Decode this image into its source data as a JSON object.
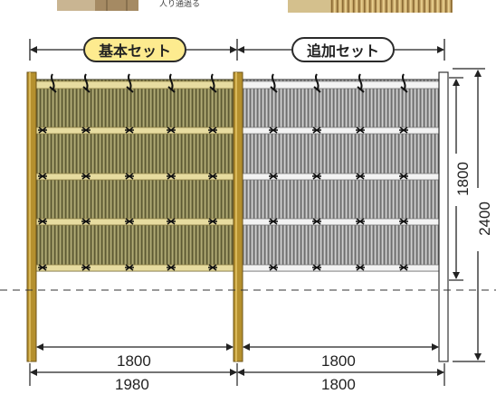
{
  "labels": {
    "basic_set": "基本セット",
    "additional_set": "追加セット",
    "top_fragment": "人り通過る"
  },
  "dimensions": {
    "basic_panel_width": "1800",
    "basic_overall_width": "1980",
    "additional_panel_width": "1800",
    "additional_overall_width": "1800",
    "fence_height": "1800",
    "post_height": "2400"
  },
  "colors": {
    "basic_pill": "#fdeb8f",
    "basic_panel": "#8e8a5a",
    "basic_reed": "#5e5a34",
    "post": "#b5902e",
    "additional_panel": "#9c9c9c",
    "additional_reed": "#6f6f6f",
    "crossbar_basic": "#e7dca0",
    "crossbar_additional": "#f3f3f3"
  }
}
